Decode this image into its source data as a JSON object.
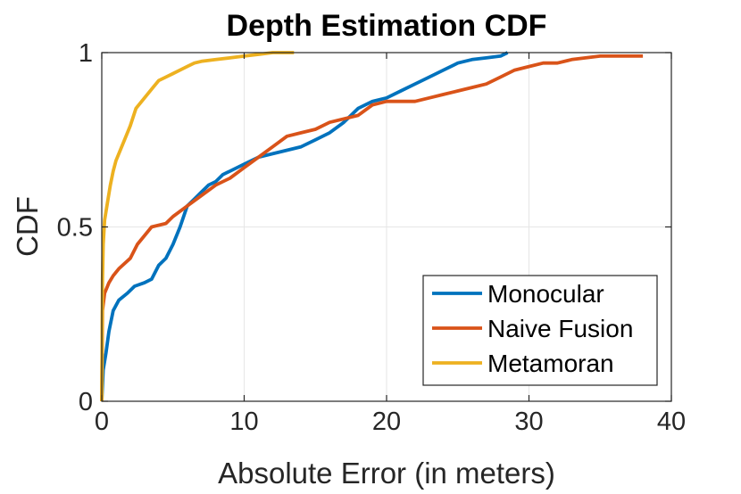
{
  "chart_data": {
    "type": "line",
    "title": "Depth Estimation CDF",
    "xlabel": "Absolute Error (in meters)",
    "ylabel": "CDF",
    "xlim": [
      0,
      40
    ],
    "ylim": [
      0,
      1
    ],
    "xticks": [
      0,
      10,
      20,
      30,
      40
    ],
    "yticks": [
      0,
      0.5,
      1
    ],
    "ytick_labels": [
      "0",
      "0.5",
      "1"
    ],
    "grid": true,
    "legend_position": "bottom-right",
    "series": [
      {
        "name": "Monocular",
        "color": "#0072BD",
        "x": [
          0,
          0.1,
          0.3,
          0.5,
          0.8,
          1.2,
          1.8,
          2.3,
          3,
          3.5,
          4,
          4.5,
          5,
          5.5,
          6,
          6.5,
          7,
          7.5,
          8,
          8.5,
          9,
          10,
          11,
          12,
          13,
          14,
          15,
          16,
          17,
          18,
          19,
          20,
          21,
          22,
          23,
          24,
          25,
          26,
          27,
          28,
          28.5
        ],
        "y": [
          0,
          0.09,
          0.14,
          0.2,
          0.26,
          0.29,
          0.31,
          0.33,
          0.34,
          0.35,
          0.39,
          0.41,
          0.45,
          0.5,
          0.56,
          0.58,
          0.6,
          0.62,
          0.63,
          0.65,
          0.66,
          0.68,
          0.7,
          0.71,
          0.72,
          0.73,
          0.75,
          0.77,
          0.8,
          0.84,
          0.86,
          0.87,
          0.89,
          0.91,
          0.93,
          0.95,
          0.97,
          0.98,
          0.985,
          0.99,
          1.0
        ]
      },
      {
        "name": "Naive Fusion",
        "color": "#D95319",
        "x": [
          0,
          0.05,
          0.2,
          0.5,
          0.8,
          1.2,
          2,
          2.5,
          3.5,
          4.5,
          5,
          6,
          7,
          8,
          9,
          10,
          11,
          12,
          13,
          14,
          15,
          16,
          17,
          18,
          19,
          20,
          21,
          22,
          23,
          24,
          25,
          26,
          27,
          28,
          29,
          30,
          31,
          32,
          33,
          35,
          38
        ],
        "y": [
          0,
          0.26,
          0.31,
          0.34,
          0.36,
          0.38,
          0.41,
          0.45,
          0.5,
          0.51,
          0.53,
          0.56,
          0.59,
          0.62,
          0.64,
          0.67,
          0.7,
          0.73,
          0.76,
          0.77,
          0.78,
          0.8,
          0.81,
          0.82,
          0.85,
          0.86,
          0.86,
          0.86,
          0.87,
          0.88,
          0.89,
          0.9,
          0.91,
          0.93,
          0.95,
          0.96,
          0.97,
          0.97,
          0.98,
          0.99,
          0.99
        ]
      },
      {
        "name": "Metamoran",
        "color": "#EDB120",
        "x": [
          0,
          0.05,
          0.1,
          0.2,
          0.4,
          0.6,
          0.8,
          1,
          1.3,
          1.6,
          2,
          2.4,
          2.8,
          3.2,
          3.6,
          4,
          4.5,
          5,
          5.5,
          6,
          6.5,
          7,
          8,
          9,
          10,
          11,
          12,
          13.5
        ],
        "y": [
          0,
          0.35,
          0.45,
          0.52,
          0.57,
          0.62,
          0.66,
          0.69,
          0.72,
          0.75,
          0.79,
          0.84,
          0.86,
          0.88,
          0.9,
          0.92,
          0.93,
          0.94,
          0.95,
          0.96,
          0.97,
          0.975,
          0.98,
          0.985,
          0.99,
          0.995,
          1.0,
          1.0
        ]
      }
    ]
  }
}
